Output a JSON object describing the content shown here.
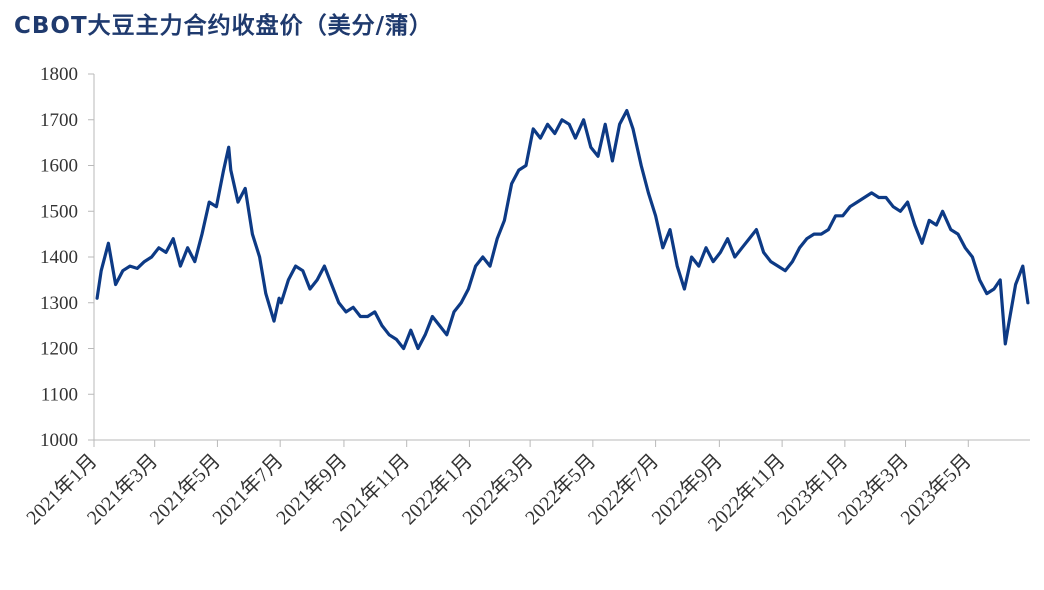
{
  "chart_data": {
    "type": "line",
    "title": "CBOT大豆主力合约收盘价（美分/蒲）",
    "xlabel": "",
    "ylabel": "",
    "ylim": [
      1000,
      1800
    ],
    "yticks": [
      "1000",
      "1100",
      "1200",
      "1300",
      "1400",
      "1500",
      "1600",
      "1700",
      "1800"
    ],
    "xticks": [
      "2021年1月",
      "2021年3月",
      "2021年5月",
      "2021年7月",
      "2021年9月",
      "2021年11月",
      "2022年1月",
      "2022年3月",
      "2022年5月",
      "2022年7月",
      "2022年9月",
      "2022年11月",
      "2023年1月",
      "2023年3月",
      "2023年5月"
    ],
    "xrange": [
      "2021-01-01",
      "2023-06-30"
    ],
    "grid": false,
    "line_color": "#0d3a85",
    "series": [
      {
        "x": [
          "2021-01-04",
          "2021-01-08",
          "2021-01-15",
          "2021-01-22",
          "2021-01-29",
          "2021-02-05",
          "2021-02-12",
          "2021-02-19",
          "2021-02-26",
          "2021-03-05",
          "2021-03-12",
          "2021-03-19",
          "2021-03-26",
          "2021-04-02",
          "2021-04-09",
          "2021-04-16",
          "2021-04-23",
          "2021-04-30",
          "2021-05-07",
          "2021-05-12",
          "2021-05-14",
          "2021-05-21",
          "2021-05-28",
          "2021-06-04",
          "2021-06-11",
          "2021-06-17",
          "2021-06-25",
          "2021-06-30",
          "2021-07-02",
          "2021-07-09",
          "2021-07-16",
          "2021-07-23",
          "2021-07-30",
          "2021-08-06",
          "2021-08-13",
          "2021-08-20",
          "2021-08-27",
          "2021-09-03",
          "2021-09-10",
          "2021-09-17",
          "2021-09-24",
          "2021-10-01",
          "2021-10-08",
          "2021-10-15",
          "2021-10-22",
          "2021-10-29",
          "2021-11-05",
          "2021-11-12",
          "2021-11-19",
          "2021-11-26",
          "2021-12-03",
          "2021-12-10",
          "2021-12-17",
          "2021-12-24",
          "2021-12-31",
          "2022-01-07",
          "2022-01-14",
          "2022-01-21",
          "2022-01-28",
          "2022-02-04",
          "2022-02-11",
          "2022-02-18",
          "2022-02-25",
          "2022-03-04",
          "2022-03-11",
          "2022-03-18",
          "2022-03-25",
          "2022-04-01",
          "2022-04-08",
          "2022-04-14",
          "2022-04-22",
          "2022-04-29",
          "2022-05-06",
          "2022-05-13",
          "2022-05-20",
          "2022-05-27",
          "2022-06-03",
          "2022-06-09",
          "2022-06-17",
          "2022-06-24",
          "2022-07-01",
          "2022-07-08",
          "2022-07-15",
          "2022-07-22",
          "2022-07-29",
          "2022-08-05",
          "2022-08-12",
          "2022-08-19",
          "2022-08-26",
          "2022-09-02",
          "2022-09-09",
          "2022-09-16",
          "2022-09-23",
          "2022-09-30",
          "2022-10-07",
          "2022-10-14",
          "2022-10-21",
          "2022-10-28",
          "2022-11-04",
          "2022-11-11",
          "2022-11-18",
          "2022-11-25",
          "2022-12-02",
          "2022-12-09",
          "2022-12-16",
          "2022-12-23",
          "2022-12-30",
          "2023-01-06",
          "2023-01-13",
          "2023-01-20",
          "2023-01-27",
          "2023-02-03",
          "2023-02-10",
          "2023-02-17",
          "2023-02-24",
          "2023-03-03",
          "2023-03-10",
          "2023-03-17",
          "2023-03-24",
          "2023-03-31",
          "2023-04-06",
          "2023-04-14",
          "2023-04-21",
          "2023-04-28",
          "2023-05-05",
          "2023-05-12",
          "2023-05-19",
          "2023-05-26",
          "2023-06-01",
          "2023-06-06",
          "2023-06-09",
          "2023-06-16",
          "2023-06-23",
          "2023-06-28"
        ],
        "y": [
          1310,
          1370,
          1430,
          1340,
          1370,
          1380,
          1375,
          1390,
          1400,
          1420,
          1410,
          1440,
          1380,
          1420,
          1390,
          1450,
          1520,
          1510,
          1590,
          1640,
          1590,
          1520,
          1550,
          1450,
          1400,
          1320,
          1260,
          1310,
          1300,
          1350,
          1380,
          1370,
          1330,
          1350,
          1380,
          1340,
          1300,
          1280,
          1290,
          1270,
          1270,
          1280,
          1250,
          1230,
          1220,
          1200,
          1240,
          1200,
          1230,
          1270,
          1250,
          1230,
          1280,
          1300,
          1330,
          1380,
          1400,
          1380,
          1440,
          1480,
          1560,
          1590,
          1600,
          1680,
          1660,
          1690,
          1670,
          1700,
          1690,
          1660,
          1700,
          1640,
          1620,
          1690,
          1610,
          1690,
          1720,
          1680,
          1600,
          1540,
          1490,
          1420,
          1460,
          1380,
          1330,
          1400,
          1380,
          1420,
          1390,
          1410,
          1440,
          1400,
          1420,
          1440,
          1460,
          1410,
          1390,
          1380,
          1370,
          1390,
          1420,
          1440,
          1450,
          1450,
          1460,
          1490,
          1490,
          1510,
          1520,
          1530,
          1540,
          1530,
          1530,
          1510,
          1500,
          1520,
          1470,
          1430,
          1480,
          1470,
          1500,
          1460,
          1450,
          1420,
          1400,
          1350,
          1320,
          1330,
          1350,
          1210,
          1250,
          1340,
          1380,
          1300
        ]
      }
    ]
  }
}
